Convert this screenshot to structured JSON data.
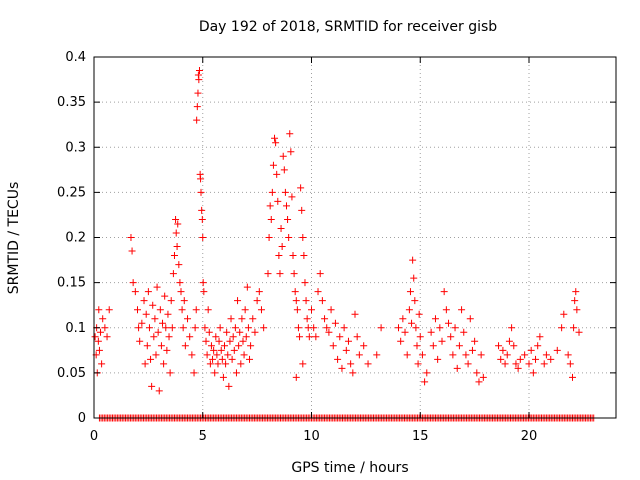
{
  "chart_data": {
    "type": "scatter",
    "title": "Day 192 of 2018, SRMTID for receiver gisb",
    "xlabel": "GPS time / hours",
    "ylabel": "SRMTID / TECUs",
    "xlim": [
      0,
      24
    ],
    "ylim": [
      0,
      0.4
    ],
    "xticks": [
      "0",
      "5",
      "10",
      "15",
      "20"
    ],
    "yticks": [
      "0",
      "0.05",
      "0.1",
      "0.15",
      "0.2",
      "0.25",
      "0.3",
      "0.35",
      "0.4"
    ],
    "grid": true,
    "legend": "none",
    "marker": "plus",
    "color": "#ff0000",
    "points": [
      [
        0.05,
        0.09
      ],
      [
        0.1,
        0.07
      ],
      [
        0.12,
        0.1
      ],
      [
        0.15,
        0.05
      ],
      [
        0.2,
        0.085
      ],
      [
        0.22,
        0.12
      ],
      [
        0.25,
        0.075
      ],
      [
        0.3,
        0.095
      ],
      [
        0.35,
        0.06
      ],
      [
        0.4,
        0.11
      ],
      [
        0.5,
        0.1
      ],
      [
        0.6,
        0.09
      ],
      [
        0.7,
        0.12
      ],
      [
        1.7,
        0.2
      ],
      [
        1.75,
        0.185
      ],
      [
        1.8,
        0.15
      ],
      [
        1.9,
        0.14
      ],
      [
        2.0,
        0.12
      ],
      [
        2.05,
        0.1
      ],
      [
        2.1,
        0.085
      ],
      [
        2.2,
        0.105
      ],
      [
        2.3,
        0.13
      ],
      [
        2.35,
        0.06
      ],
      [
        2.4,
        0.115
      ],
      [
        2.45,
        0.08
      ],
      [
        2.5,
        0.14
      ],
      [
        2.55,
        0.1
      ],
      [
        2.6,
        0.065
      ],
      [
        2.65,
        0.035
      ],
      [
        2.7,
        0.125
      ],
      [
        2.75,
        0.09
      ],
      [
        2.8,
        0.11
      ],
      [
        2.85,
        0.07
      ],
      [
        2.9,
        0.145
      ],
      [
        2.95,
        0.095
      ],
      [
        3.0,
        0.03
      ],
      [
        3.05,
        0.12
      ],
      [
        3.1,
        0.08
      ],
      [
        3.15,
        0.105
      ],
      [
        3.2,
        0.06
      ],
      [
        3.25,
        0.135
      ],
      [
        3.3,
        0.1
      ],
      [
        3.35,
        0.075
      ],
      [
        3.4,
        0.115
      ],
      [
        3.45,
        0.09
      ],
      [
        3.5,
        0.05
      ],
      [
        3.55,
        0.13
      ],
      [
        3.6,
        0.1
      ],
      [
        3.65,
        0.16
      ],
      [
        3.7,
        0.18
      ],
      [
        3.75,
        0.22
      ],
      [
        3.78,
        0.205
      ],
      [
        3.82,
        0.19
      ],
      [
        3.85,
        0.215
      ],
      [
        3.9,
        0.17
      ],
      [
        3.95,
        0.15
      ],
      [
        4.0,
        0.14
      ],
      [
        4.05,
        0.12
      ],
      [
        4.1,
        0.1
      ],
      [
        4.15,
        0.13
      ],
      [
        4.2,
        0.08
      ],
      [
        4.3,
        0.11
      ],
      [
        4.4,
        0.09
      ],
      [
        4.5,
        0.07
      ],
      [
        4.6,
        0.05
      ],
      [
        4.65,
        0.1
      ],
      [
        4.7,
        0.12
      ],
      [
        4.72,
        0.33
      ],
      [
        4.75,
        0.345
      ],
      [
        4.78,
        0.36
      ],
      [
        4.8,
        0.38
      ],
      [
        4.82,
        0.375
      ],
      [
        4.85,
        0.385
      ],
      [
        4.88,
        0.27
      ],
      [
        4.9,
        0.265
      ],
      [
        4.92,
        0.25
      ],
      [
        4.95,
        0.23
      ],
      [
        4.98,
        0.22
      ],
      [
        5.0,
        0.2
      ],
      [
        5.02,
        0.15
      ],
      [
        5.05,
        0.14
      ],
      [
        5.1,
        0.1
      ],
      [
        5.15,
        0.085
      ],
      [
        5.2,
        0.07
      ],
      [
        5.25,
        0.12
      ],
      [
        5.3,
        0.095
      ],
      [
        5.35,
        0.06
      ],
      [
        5.4,
        0.08
      ],
      [
        5.45,
        0.065
      ],
      [
        5.5,
        0.075
      ],
      [
        5.55,
        0.05
      ],
      [
        5.6,
        0.09
      ],
      [
        5.65,
        0.07
      ],
      [
        5.7,
        0.06
      ],
      [
        5.75,
        0.085
      ],
      [
        5.8,
        0.1
      ],
      [
        5.85,
        0.075
      ],
      [
        5.9,
        0.065
      ],
      [
        5.95,
        0.045
      ],
      [
        6.0,
        0.08
      ],
      [
        6.05,
        0.06
      ],
      [
        6.1,
        0.095
      ],
      [
        6.15,
        0.07
      ],
      [
        6.2,
        0.035
      ],
      [
        6.25,
        0.085
      ],
      [
        6.3,
        0.11
      ],
      [
        6.35,
        0.065
      ],
      [
        6.4,
        0.09
      ],
      [
        6.45,
        0.075
      ],
      [
        6.5,
        0.1
      ],
      [
        6.55,
        0.05
      ],
      [
        6.6,
        0.13
      ],
      [
        6.65,
        0.08
      ],
      [
        6.7,
        0.095
      ],
      [
        6.75,
        0.06
      ],
      [
        6.8,
        0.11
      ],
      [
        6.85,
        0.085
      ],
      [
        6.9,
        0.07
      ],
      [
        6.95,
        0.12
      ],
      [
        7.0,
        0.09
      ],
      [
        7.05,
        0.145
      ],
      [
        7.1,
        0.1
      ],
      [
        7.15,
        0.065
      ],
      [
        7.2,
        0.08
      ],
      [
        7.3,
        0.11
      ],
      [
        7.4,
        0.095
      ],
      [
        7.5,
        0.13
      ],
      [
        7.6,
        0.14
      ],
      [
        7.7,
        0.12
      ],
      [
        7.8,
        0.1
      ],
      [
        8.0,
        0.16
      ],
      [
        8.05,
        0.2
      ],
      [
        8.1,
        0.235
      ],
      [
        8.15,
        0.22
      ],
      [
        8.2,
        0.25
      ],
      [
        8.25,
        0.28
      ],
      [
        8.3,
        0.31
      ],
      [
        8.35,
        0.305
      ],
      [
        8.4,
        0.27
      ],
      [
        8.45,
        0.24
      ],
      [
        8.5,
        0.18
      ],
      [
        8.55,
        0.16
      ],
      [
        8.6,
        0.21
      ],
      [
        8.65,
        0.19
      ],
      [
        8.7,
        0.29
      ],
      [
        8.75,
        0.275
      ],
      [
        8.8,
        0.25
      ],
      [
        8.85,
        0.235
      ],
      [
        8.9,
        0.22
      ],
      [
        8.95,
        0.2
      ],
      [
        9.0,
        0.315
      ],
      [
        9.05,
        0.295
      ],
      [
        9.1,
        0.245
      ],
      [
        9.15,
        0.18
      ],
      [
        9.2,
        0.16
      ],
      [
        9.25,
        0.14
      ],
      [
        9.3,
        0.13
      ],
      [
        9.35,
        0.12
      ],
      [
        9.4,
        0.1
      ],
      [
        9.45,
        0.09
      ],
      [
        9.5,
        0.255
      ],
      [
        9.55,
        0.23
      ],
      [
        9.6,
        0.2
      ],
      [
        9.65,
        0.18
      ],
      [
        9.7,
        0.15
      ],
      [
        9.75,
        0.13
      ],
      [
        9.8,
        0.11
      ],
      [
        9.85,
        0.1
      ],
      [
        9.9,
        0.09
      ],
      [
        9.3,
        0.045
      ],
      [
        9.6,
        0.06
      ],
      [
        10.0,
        0.12
      ],
      [
        10.1,
        0.1
      ],
      [
        10.2,
        0.09
      ],
      [
        10.3,
        0.14
      ],
      [
        10.4,
        0.16
      ],
      [
        10.5,
        0.13
      ],
      [
        10.6,
        0.11
      ],
      [
        10.7,
        0.1
      ],
      [
        10.8,
        0.095
      ],
      [
        10.9,
        0.12
      ],
      [
        11.0,
        0.08
      ],
      [
        11.1,
        0.105
      ],
      [
        11.2,
        0.065
      ],
      [
        11.3,
        0.09
      ],
      [
        11.4,
        0.055
      ],
      [
        11.5,
        0.1
      ],
      [
        11.6,
        0.075
      ],
      [
        11.7,
        0.085
      ],
      [
        11.8,
        0.06
      ],
      [
        11.9,
        0.05
      ],
      [
        12.0,
        0.115
      ],
      [
        12.1,
        0.09
      ],
      [
        12.2,
        0.07
      ],
      [
        12.4,
        0.08
      ],
      [
        12.6,
        0.06
      ],
      [
        13.0,
        0.07
      ],
      [
        13.2,
        0.1
      ],
      [
        14.0,
        0.1
      ],
      [
        14.1,
        0.085
      ],
      [
        14.2,
        0.11
      ],
      [
        14.3,
        0.095
      ],
      [
        14.4,
        0.07
      ],
      [
        14.5,
        0.12
      ],
      [
        14.55,
        0.14
      ],
      [
        14.6,
        0.105
      ],
      [
        14.65,
        0.175
      ],
      [
        14.7,
        0.155
      ],
      [
        14.75,
        0.13
      ],
      [
        14.8,
        0.1
      ],
      [
        14.85,
        0.08
      ],
      [
        14.9,
        0.06
      ],
      [
        14.95,
        0.115
      ],
      [
        15.0,
        0.09
      ],
      [
        15.1,
        0.07
      ],
      [
        15.2,
        0.04
      ],
      [
        15.3,
        0.05
      ],
      [
        15.5,
        0.095
      ],
      [
        15.6,
        0.08
      ],
      [
        15.7,
        0.11
      ],
      [
        15.8,
        0.065
      ],
      [
        15.9,
        0.1
      ],
      [
        16.0,
        0.085
      ],
      [
        16.1,
        0.14
      ],
      [
        16.2,
        0.12
      ],
      [
        16.3,
        0.105
      ],
      [
        16.4,
        0.09
      ],
      [
        16.5,
        0.07
      ],
      [
        16.6,
        0.1
      ],
      [
        16.7,
        0.055
      ],
      [
        16.8,
        0.08
      ],
      [
        16.9,
        0.12
      ],
      [
        17.0,
        0.095
      ],
      [
        17.1,
        0.07
      ],
      [
        17.2,
        0.06
      ],
      [
        17.3,
        0.11
      ],
      [
        17.4,
        0.075
      ],
      [
        17.5,
        0.085
      ],
      [
        17.6,
        0.05
      ],
      [
        17.7,
        0.04
      ],
      [
        17.8,
        0.07
      ],
      [
        17.9,
        0.045
      ],
      [
        18.6,
        0.08
      ],
      [
        18.7,
        0.065
      ],
      [
        18.8,
        0.075
      ],
      [
        18.9,
        0.06
      ],
      [
        19.0,
        0.07
      ],
      [
        19.1,
        0.085
      ],
      [
        19.2,
        0.1
      ],
      [
        19.3,
        0.08
      ],
      [
        19.4,
        0.06
      ],
      [
        19.5,
        0.055
      ],
      [
        19.6,
        0.065
      ],
      [
        19.8,
        0.07
      ],
      [
        20.0,
        0.06
      ],
      [
        20.1,
        0.075
      ],
      [
        20.2,
        0.05
      ],
      [
        20.3,
        0.065
      ],
      [
        20.4,
        0.08
      ],
      [
        20.5,
        0.09
      ],
      [
        20.7,
        0.06
      ],
      [
        20.8,
        0.07
      ],
      [
        21.0,
        0.065
      ],
      [
        21.3,
        0.075
      ],
      [
        21.5,
        0.1
      ],
      [
        21.6,
        0.115
      ],
      [
        21.8,
        0.07
      ],
      [
        21.9,
        0.06
      ],
      [
        22.0,
        0.045
      ],
      [
        22.05,
        0.1
      ],
      [
        22.1,
        0.13
      ],
      [
        22.15,
        0.14
      ],
      [
        22.2,
        0.12
      ],
      [
        22.3,
        0.095
      ]
    ],
    "zero_points_x_range": [
      0.25,
      23.0
    ],
    "zero_points_step": 0.075
  }
}
